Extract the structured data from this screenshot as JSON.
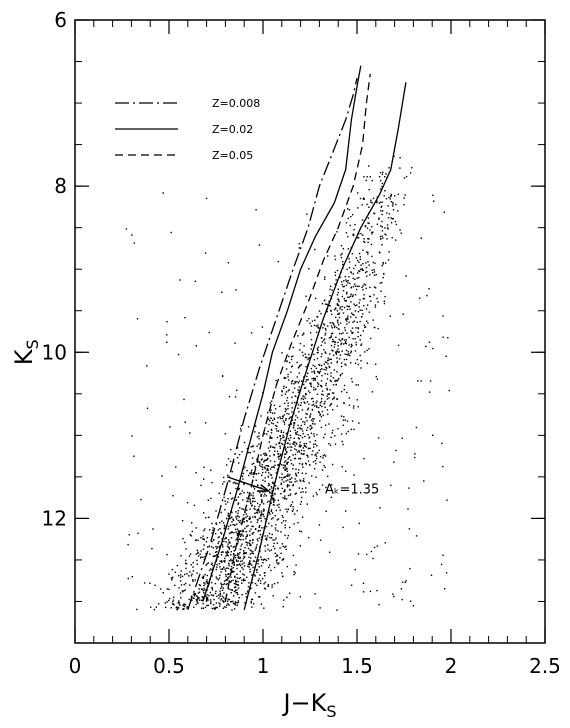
{
  "chart_data": {
    "type": "scatter",
    "x_axis": {
      "label_main": "J−K",
      "label_sub": "S",
      "range": [
        0,
        2.5
      ],
      "ticks": [
        0,
        0.5,
        1,
        1.5,
        2,
        2.5
      ],
      "tick_labels": [
        "0",
        "0.5",
        "1",
        "1.5",
        "2",
        "2.5"
      ]
    },
    "y_axis": {
      "label_main": "K",
      "label_sub": "S",
      "range": [
        6,
        13.5
      ],
      "inverted": true,
      "ticks": [
        6,
        8,
        10,
        12
      ],
      "tick_labels": [
        "6",
        "8",
        "10",
        "12"
      ]
    },
    "grid": false,
    "legend_position": "top-left",
    "series": [
      {
        "name": "Z=0.008",
        "style": "dash-dot",
        "points": [
          [
            0.6,
            13.1
          ],
          [
            0.72,
            12.3
          ],
          [
            0.82,
            11.5
          ],
          [
            0.9,
            10.8
          ],
          [
            0.98,
            10.2
          ],
          [
            1.07,
            9.6
          ],
          [
            1.16,
            9.0
          ],
          [
            1.24,
            8.5
          ],
          [
            1.3,
            8.0
          ],
          [
            1.37,
            7.6
          ],
          [
            1.44,
            7.2
          ],
          [
            1.48,
            6.9
          ],
          [
            1.5,
            6.7
          ]
        ]
      },
      {
        "name": "Z=0.02",
        "style": "solid",
        "points": [
          [
            0.68,
            13.0
          ],
          [
            0.78,
            12.3
          ],
          [
            0.87,
            11.6
          ],
          [
            0.94,
            11.0
          ],
          [
            1.0,
            10.5
          ],
          [
            1.05,
            10.0
          ],
          [
            1.13,
            9.5
          ],
          [
            1.2,
            9.0
          ],
          [
            1.28,
            8.6
          ],
          [
            1.38,
            8.2
          ],
          [
            1.44,
            7.8
          ],
          [
            1.47,
            7.2
          ],
          [
            1.5,
            6.8
          ],
          [
            1.52,
            6.55
          ]
        ]
      },
      {
        "name": "Z=0.05",
        "style": "dashed",
        "points": [
          [
            0.8,
            13.0
          ],
          [
            0.86,
            12.3
          ],
          [
            0.94,
            11.6
          ],
          [
            1.0,
            11.0
          ],
          [
            1.07,
            10.4
          ],
          [
            1.15,
            9.9
          ],
          [
            1.24,
            9.4
          ],
          [
            1.32,
            8.9
          ],
          [
            1.4,
            8.5
          ],
          [
            1.48,
            8.0
          ],
          [
            1.53,
            7.5
          ],
          [
            1.55,
            7.0
          ],
          [
            1.57,
            6.65
          ]
        ]
      },
      {
        "name": "",
        "style": "solid",
        "points": [
          [
            0.9,
            13.1
          ],
          [
            0.98,
            12.4
          ],
          [
            1.06,
            11.6
          ],
          [
            1.14,
            10.9
          ],
          [
            1.22,
            10.3
          ],
          [
            1.32,
            9.6
          ],
          [
            1.42,
            9.0
          ],
          [
            1.52,
            8.5
          ],
          [
            1.62,
            8.1
          ],
          [
            1.68,
            7.8
          ],
          [
            1.72,
            7.3
          ],
          [
            1.76,
            6.75
          ]
        ]
      }
    ],
    "arrows": [
      {
        "from": [
          0.81,
          11.5
        ],
        "to": [
          1.03,
          11.67
        ]
      }
    ],
    "annotation": {
      "text": "Aₖ=1.35",
      "x": 1.33,
      "y": 11.7
    }
  }
}
